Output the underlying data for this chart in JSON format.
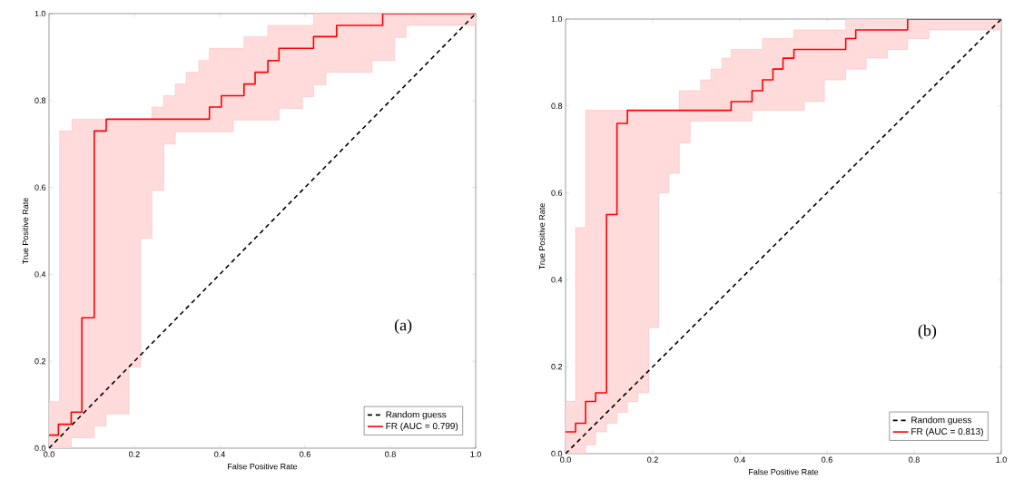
{
  "chart_data": [
    {
      "type": "step",
      "xlabel": "False Positive Rate",
      "ylabel": "True Positive Rate",
      "annotations": [
        "(a)"
      ],
      "xlim": [
        0,
        1
      ],
      "ylim": [
        0,
        1
      ],
      "xticks": [
        {
          "value": 0,
          "label": "0.0"
        },
        {
          "value": 0.2,
          "label": "0.2"
        },
        {
          "value": 0.4,
          "label": "0.4"
        },
        {
          "value": 0.6,
          "label": "0.6"
        },
        {
          "value": 0.8,
          "label": "0.8"
        },
        {
          "value": 1,
          "label": "1.0"
        }
      ],
      "yticks": [
        {
          "value": 0,
          "label": "0.0"
        },
        {
          "value": 0.2,
          "label": "0.2"
        },
        {
          "value": 0.4,
          "label": "0.4"
        },
        {
          "value": 0.6,
          "label": "0.6"
        },
        {
          "value": 0.8,
          "label": "0.8"
        },
        {
          "value": 1,
          "label": "1.0"
        }
      ],
      "legend": "bottom right",
      "series": [
        {
          "name": "Random guess",
          "type": "line",
          "line_style": "dashed",
          "color": "#000000",
          "x": [
            0,
            1
          ],
          "values": [
            0,
            1
          ]
        },
        {
          "name": "FR (AUC = 0.799)",
          "color": "#ff0000",
          "x": [
            0,
            0.022,
            0.025,
            0.052,
            0.054,
            0.077,
            0.106,
            0.134,
            0.187,
            0.215,
            0.241,
            0.269,
            0.296,
            0.322,
            0.351,
            0.376,
            0.404,
            0.432,
            0.457,
            0.483,
            0.513,
            0.539,
            0.594,
            0.62,
            0.649,
            0.674,
            0.757,
            0.782,
            0.81,
            0.837,
            1
          ],
          "values": [
            0.03,
            0.055,
            0.055,
            0.083,
            0.083,
            0.3,
            0.73,
            0.757,
            0.757,
            0.757,
            0.757,
            0.757,
            0.757,
            0.757,
            0.757,
            0.785,
            0.811,
            0.811,
            0.838,
            0.865,
            0.892,
            0.92,
            0.92,
            0.947,
            0.947,
            0.973,
            0.973,
            1,
            1,
            1,
            1
          ],
          "upper": [
            0.107,
            0.107,
            0.73,
            0.73,
            0.757,
            0.757,
            0.757,
            0.757,
            0.757,
            0.757,
            0.785,
            0.811,
            0.838,
            0.865,
            0.892,
            0.92,
            0.92,
            0.92,
            0.947,
            0.947,
            0.973,
            0.973,
            0.973,
            1,
            1,
            1,
            1,
            1,
            1,
            1,
            1
          ],
          "lower": [
            0,
            0,
            0,
            0.024,
            0.024,
            0.024,
            0.051,
            0.079,
            0.187,
            0.483,
            0.593,
            0.7,
            0.728,
            0.728,
            0.728,
            0.728,
            0.728,
            0.755,
            0.755,
            0.755,
            0.755,
            0.782,
            0.809,
            0.836,
            0.865,
            0.865,
            0.892,
            0.892,
            0.945,
            0.973,
            0.973
          ]
        }
      ]
    },
    {
      "type": "step",
      "xlabel": "False Positive Rate",
      "ylabel": "True Positive Rate",
      "annotations": [
        "(b)"
      ],
      "xlim": [
        0,
        1
      ],
      "ylim": [
        0,
        1
      ],
      "xticks": [
        {
          "value": 0,
          "label": "0.0"
        },
        {
          "value": 0.2,
          "label": "0.2"
        },
        {
          "value": 0.4,
          "label": "0.4"
        },
        {
          "value": 0.6,
          "label": "0.6"
        },
        {
          "value": 0.8,
          "label": "0.8"
        },
        {
          "value": 1,
          "label": "1.0"
        }
      ],
      "yticks": [
        {
          "value": 0,
          "label": "0.0"
        },
        {
          "value": 0.2,
          "label": "0.2"
        },
        {
          "value": 0.4,
          "label": "0.4"
        },
        {
          "value": 0.6,
          "label": "0.6"
        },
        {
          "value": 0.8,
          "label": "0.8"
        },
        {
          "value": 1,
          "label": "1.0"
        }
      ],
      "legend": "bottom right",
      "series": [
        {
          "name": "Random guess",
          "type": "line",
          "line_style": "dashed",
          "color": "#000000",
          "x": [
            0,
            1
          ],
          "values": [
            0,
            1
          ]
        },
        {
          "name": "FR (AUC = 0.813)",
          "color": "#ff0000",
          "x": [
            0,
            0.023,
            0.046,
            0.069,
            0.094,
            0.118,
            0.142,
            0.166,
            0.191,
            0.214,
            0.237,
            0.261,
            0.286,
            0.31,
            0.334,
            0.359,
            0.38,
            0.428,
            0.452,
            0.476,
            0.499,
            0.524,
            0.548,
            0.594,
            0.643,
            0.666,
            0.69,
            0.739,
            0.785,
            0.834,
            1
          ],
          "values": [
            0.05,
            0.07,
            0.12,
            0.14,
            0.55,
            0.76,
            0.79,
            0.79,
            0.79,
            0.79,
            0.79,
            0.79,
            0.79,
            0.79,
            0.79,
            0.79,
            0.81,
            0.835,
            0.86,
            0.885,
            0.91,
            0.93,
            0.93,
            0.93,
            0.955,
            0.975,
            0.975,
            0.975,
            1,
            1,
            1
          ],
          "upper": [
            0.12,
            0.52,
            0.79,
            0.79,
            0.79,
            0.79,
            0.79,
            0.79,
            0.79,
            0.79,
            0.79,
            0.835,
            0.835,
            0.86,
            0.885,
            0.91,
            0.93,
            0.93,
            0.955,
            0.955,
            0.955,
            0.975,
            0.975,
            0.975,
            1,
            1,
            1,
            1,
            1,
            1,
            1
          ],
          "lower": [
            0,
            0,
            0.02,
            0.05,
            0.07,
            0.095,
            0.12,
            0.14,
            0.29,
            0.6,
            0.645,
            0.715,
            0.765,
            0.765,
            0.765,
            0.765,
            0.765,
            0.79,
            0.79,
            0.79,
            0.79,
            0.79,
            0.81,
            0.86,
            0.885,
            0.885,
            0.91,
            0.93,
            0.955,
            0.975,
            0.975
          ]
        }
      ]
    }
  ]
}
